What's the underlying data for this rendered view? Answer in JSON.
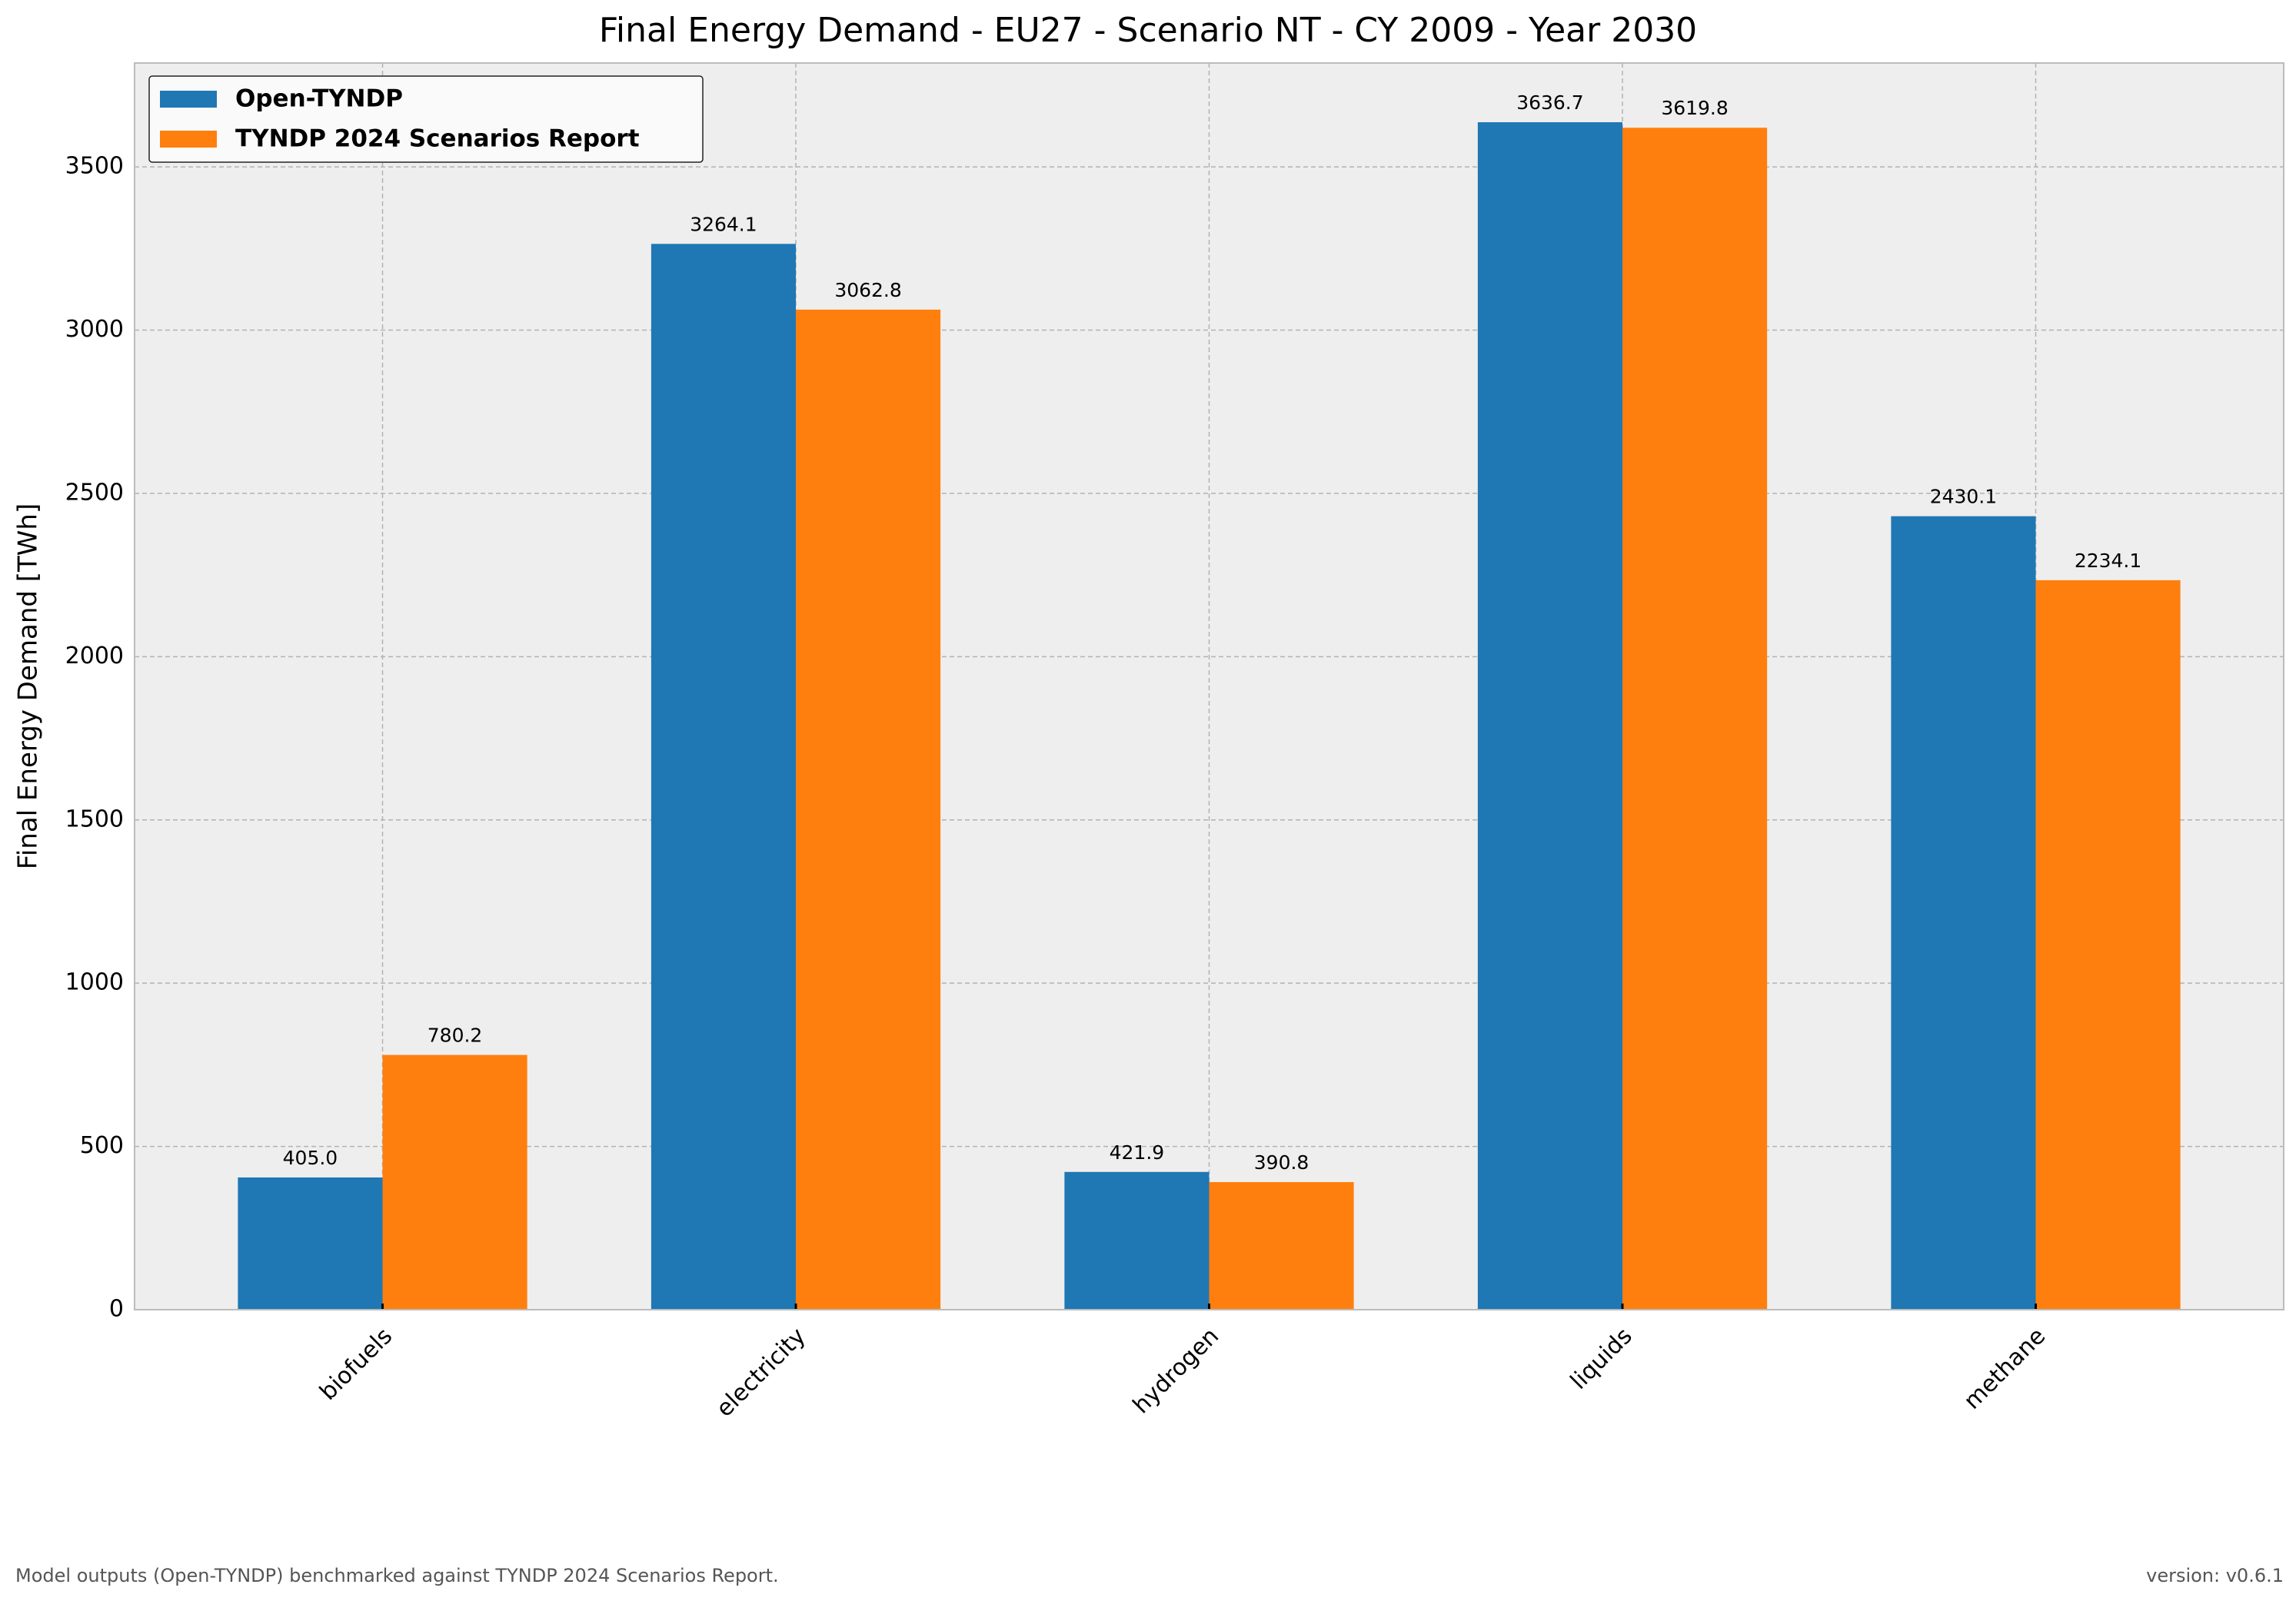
{
  "chart_data": {
    "type": "bar",
    "title": "Final Energy Demand - EU27 - Scenario NT - CY 2009 - Year 2030",
    "y_label": "Final Energy Demand [TWh]",
    "categories": [
      "biofuels",
      "electricity",
      "hydrogen",
      "liquids",
      "methane"
    ],
    "series": [
      {
        "name": "Open-TYNDP",
        "color": "#1f77b4",
        "values": [
          405.0,
          3264.1,
          421.9,
          3636.7,
          2430.1
        ],
        "value_labels": [
          "405.0",
          "3264.1",
          "421.9",
          "3636.7",
          "2430.1"
        ]
      },
      {
        "name": "TYNDP 2024 Scenarios Report",
        "color": "#ff7f0e",
        "values": [
          780.2,
          3062.8,
          390.8,
          3619.8,
          2234.1
        ],
        "value_labels": [
          "780.2",
          "3062.8",
          "390.8",
          "3619.8",
          "2234.1"
        ]
      }
    ],
    "ylim": [
      0,
      3818
    ],
    "yticks": [
      0,
      500,
      1000,
      1500,
      2000,
      2500,
      3000,
      3500
    ],
    "grid": true,
    "legend": "upper left",
    "footnote": "Model outputs (Open-TYNDP) benchmarked against TYNDP 2024 Scenarios Report.",
    "version": "version: v0.6.1"
  }
}
